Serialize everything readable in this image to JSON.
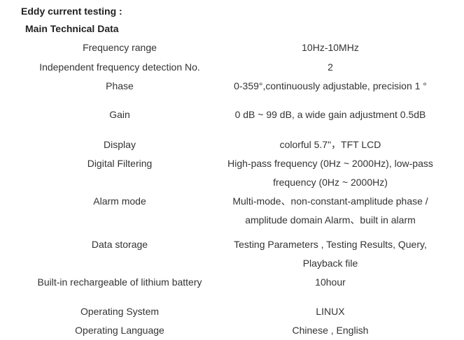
{
  "heading": "Eddy current testing :",
  "subheading": "Main Technical Data",
  "rows": [
    {
      "label": "Frequency range",
      "value": "10Hz-10MHz"
    },
    {
      "label": "Independent frequency detection No.",
      "value": "2"
    },
    {
      "label": "Phase",
      "value": "0-359°,continuously adjustable, precision 1 °"
    },
    {
      "label": "Gain",
      "value": "0 dB ~ 99 dB, a wide gain adjustment 0.5dB"
    },
    {
      "label": "Display",
      "value": "colorful 5.7\"，TFT LCD"
    },
    {
      "label": "Digital Filtering",
      "value": "High-pass frequency (0Hz ~ 2000Hz), low-pass frequency (0Hz ~ 2000Hz)"
    },
    {
      "label": "Alarm mode",
      "value": "Multi-mode、non-constant-amplitude phase / amplitude domain Alarm、built in alarm"
    },
    {
      "label": "Data storage",
      "value": "Testing Parameters , Testing Results, Query, Playback file"
    },
    {
      "label": "Built-in rechargeable of lithium battery",
      "value": "10hour"
    },
    {
      "label": "Operating System",
      "value": "LINUX"
    },
    {
      "label": "Operating Language",
      "value": "Chinese , English"
    }
  ]
}
